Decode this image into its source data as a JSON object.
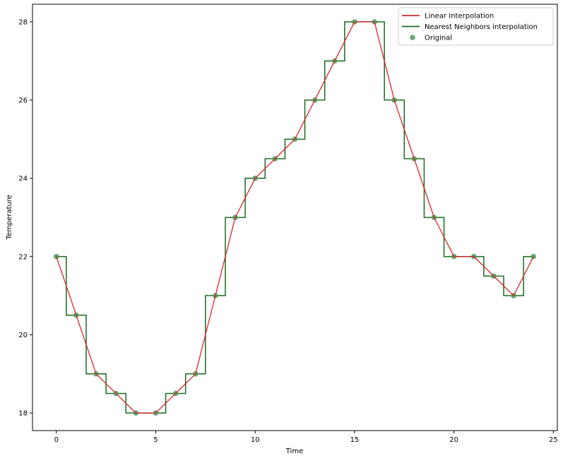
{
  "chart_data": {
    "type": "line",
    "title": "",
    "xlabel": "Time",
    "ylabel": "Temperature",
    "xlim": [
      -1.2,
      25.2
    ],
    "ylim": [
      17.55,
      28.45
    ],
    "x_ticks": [
      0,
      5,
      10,
      15,
      20,
      25
    ],
    "y_ticks": [
      18,
      20,
      22,
      24,
      26,
      28
    ],
    "grid": false,
    "legend_position": "top-right",
    "x": [
      0,
      1,
      2,
      3,
      4,
      5,
      6,
      7,
      8,
      9,
      10,
      11,
      12,
      13,
      14,
      15,
      16,
      17,
      18,
      19,
      20,
      21,
      22,
      23,
      24
    ],
    "series": [
      {
        "name": "Linear Interpolation",
        "kind": "line",
        "color": "#d62728",
        "values": [
          22,
          20.5,
          19,
          18.5,
          18,
          18,
          18.5,
          19,
          21,
          23,
          24,
          24.5,
          25,
          26,
          27,
          28,
          28,
          26,
          24.5,
          23,
          22,
          22,
          21.5,
          21,
          22
        ]
      },
      {
        "name": "Nearest Neighbors interpolation",
        "kind": "step",
        "color": "#1a6b1a",
        "values": [
          22,
          20.5,
          19,
          18.5,
          18,
          18,
          18.5,
          19,
          21,
          23,
          24,
          24.5,
          25,
          26,
          27,
          28,
          28,
          26,
          24.5,
          23,
          22,
          22,
          21.5,
          21,
          22
        ]
      },
      {
        "name": "Original",
        "kind": "scatter",
        "color": "#4c9a5c",
        "values": [
          22,
          20.5,
          19,
          18.5,
          18,
          18,
          18.5,
          19,
          21,
          23,
          24,
          24.5,
          25,
          26,
          27,
          28,
          28,
          26,
          24.5,
          23,
          22,
          22,
          21.5,
          21,
          22
        ]
      }
    ]
  }
}
